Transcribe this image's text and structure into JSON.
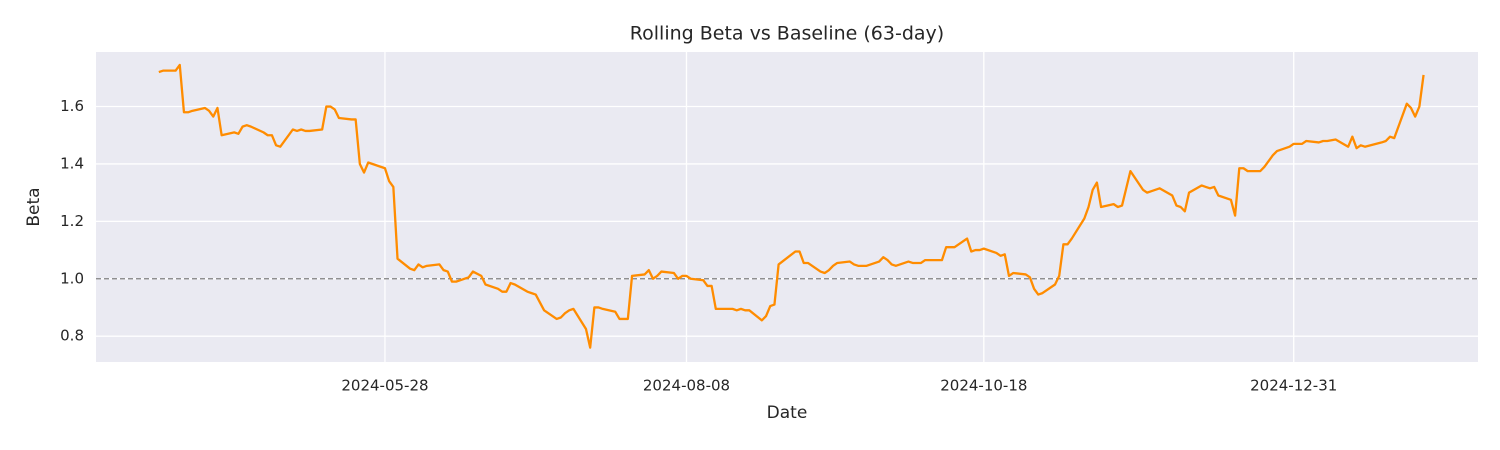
{
  "chart_data": {
    "type": "line",
    "title": "Rolling Beta vs Baseline (63-day)",
    "xlabel": "Date",
    "ylabel": "Beta",
    "color": "#ff8c00",
    "grid": true,
    "background": "#eaeaf2",
    "reference_line": {
      "value": 1,
      "color": "#808080",
      "style": "dashed"
    },
    "xlim": [
      "2024-03-20",
      "2025-02-13"
    ],
    "xticks": [
      "2024-05-28",
      "2024-08-08",
      "2024-10-18",
      "2024-12-31"
    ],
    "ylim": [
      0.71,
      1.79
    ],
    "yticks": [
      0.8,
      {
        "value": 1,
        "label": "1.0"
      },
      1.2,
      1.4,
      1.6
    ],
    "x": [
      "2024-04-04",
      "2024-04-05",
      "2024-04-08",
      "2024-04-09",
      "2024-04-10",
      "2024-04-11",
      "2024-04-12",
      "2024-04-15",
      "2024-04-16",
      "2024-04-17",
      "2024-04-18",
      "2024-04-19",
      "2024-04-22",
      "2024-04-23",
      "2024-04-24",
      "2024-04-25",
      "2024-04-26",
      "2024-04-29",
      "2024-04-30",
      "2024-05-01",
      "2024-05-02",
      "2024-05-03",
      "2024-05-06",
      "2024-05-07",
      "2024-05-08",
      "2024-05-09",
      "2024-05-10",
      "2024-05-13",
      "2024-05-14",
      "2024-05-15",
      "2024-05-16",
      "2024-05-17",
      "2024-05-20",
      "2024-05-21",
      "2024-05-22",
      "2024-05-23",
      "2024-05-24",
      "2024-05-28",
      "2024-05-29",
      "2024-05-30",
      "2024-05-31",
      "2024-06-03",
      "2024-06-04",
      "2024-06-05",
      "2024-06-06",
      "2024-06-07",
      "2024-06-10",
      "2024-06-11",
      "2024-06-12",
      "2024-06-13",
      "2024-06-14",
      "2024-06-17",
      "2024-06-18",
      "2024-06-20",
      "2024-06-21",
      "2024-06-24",
      "2024-06-25",
      "2024-06-26",
      "2024-06-27",
      "2024-06-28",
      "2024-07-01",
      "2024-07-02",
      "2024-07-03",
      "2024-07-05",
      "2024-07-08",
      "2024-07-09",
      "2024-07-10",
      "2024-07-11",
      "2024-07-12",
      "2024-07-15",
      "2024-07-16",
      "2024-07-17",
      "2024-07-18",
      "2024-07-19",
      "2024-07-22",
      "2024-07-23",
      "2024-07-24",
      "2024-07-25",
      "2024-07-26",
      "2024-07-29",
      "2024-07-30",
      "2024-07-31",
      "2024-08-01",
      "2024-08-02",
      "2024-08-05",
      "2024-08-06",
      "2024-08-07",
      "2024-08-08",
      "2024-08-09",
      "2024-08-12",
      "2024-08-13",
      "2024-08-14",
      "2024-08-15",
      "2024-08-16",
      "2024-08-19",
      "2024-08-20",
      "2024-08-21",
      "2024-08-22",
      "2024-08-23",
      "2024-08-26",
      "2024-08-27",
      "2024-08-28",
      "2024-08-29",
      "2024-08-30",
      "2024-09-03",
      "2024-09-04",
      "2024-09-05",
      "2024-09-06",
      "2024-09-09",
      "2024-09-10",
      "2024-09-11",
      "2024-09-12",
      "2024-09-13",
      "2024-09-16",
      "2024-09-17",
      "2024-09-18",
      "2024-09-19",
      "2024-09-20",
      "2024-09-23",
      "2024-09-24",
      "2024-09-25",
      "2024-09-26",
      "2024-09-27",
      "2024-09-30",
      "2024-10-01",
      "2024-10-02",
      "2024-10-03",
      "2024-10-04",
      "2024-10-07",
      "2024-10-08",
      "2024-10-09",
      "2024-10-10",
      "2024-10-11",
      "2024-10-14",
      "2024-10-15",
      "2024-10-16",
      "2024-10-17",
      "2024-10-18",
      "2024-10-21",
      "2024-10-22",
      "2024-10-23",
      "2024-10-24",
      "2024-10-25",
      "2024-10-28",
      "2024-10-29",
      "2024-10-30",
      "2024-10-31",
      "2024-11-01",
      "2024-11-04",
      "2024-11-05",
      "2024-11-06",
      "2024-11-07",
      "2024-11-08",
      "2024-11-11",
      "2024-11-12",
      "2024-11-13",
      "2024-11-14",
      "2024-11-15",
      "2024-11-18",
      "2024-11-19",
      "2024-11-20",
      "2024-11-21",
      "2024-11-22",
      "2024-11-25",
      "2024-11-26",
      "2024-11-27",
      "2024-11-29",
      "2024-12-02",
      "2024-12-03",
      "2024-12-04",
      "2024-12-05",
      "2024-12-06",
      "2024-12-09",
      "2024-12-10",
      "2024-12-11",
      "2024-12-12",
      "2024-12-13",
      "2024-12-16",
      "2024-12-17",
      "2024-12-18",
      "2024-12-19",
      "2024-12-20",
      "2024-12-23",
      "2024-12-24",
      "2024-12-26",
      "2024-12-27",
      "2024-12-30",
      "2024-12-31",
      "2025-01-02",
      "2025-01-03",
      "2025-01-06",
      "2025-01-07",
      "2025-01-08",
      "2025-01-10",
      "2025-01-13",
      "2025-01-14",
      "2025-01-15",
      "2025-01-16",
      "2025-01-17",
      "2025-01-21",
      "2025-01-22",
      "2025-01-23",
      "2025-01-24",
      "2025-01-27",
      "2025-01-28",
      "2025-01-29",
      "2025-01-30",
      "2025-01-31"
    ],
    "values": [
      1.72,
      1.725,
      1.725,
      1.745,
      1.58,
      1.58,
      1.585,
      1.595,
      1.585,
      1.565,
      1.595,
      1.5,
      1.51,
      1.505,
      1.53,
      1.535,
      1.53,
      1.51,
      1.5,
      1.5,
      1.465,
      1.46,
      1.52,
      1.515,
      1.52,
      1.515,
      1.515,
      1.52,
      1.6,
      1.6,
      1.59,
      1.56,
      1.555,
      1.555,
      1.4,
      1.37,
      1.405,
      1.385,
      1.34,
      1.32,
      1.07,
      1.035,
      1.03,
      1.05,
      1.04,
      1.045,
      1.05,
      1.03,
      1.025,
      0.99,
      0.99,
      1.005,
      1.025,
      1.01,
      0.98,
      0.965,
      0.955,
      0.955,
      0.985,
      0.98,
      0.955,
      0.95,
      0.945,
      0.89,
      0.86,
      0.865,
      0.88,
      0.89,
      0.895,
      0.825,
      0.76,
      0.9,
      0.9,
      0.895,
      0.885,
      0.86,
      0.86,
      0.86,
      1.01,
      1.015,
      1.03,
      1.0,
      1.01,
      1.025,
      1.02,
      1.0,
      1.01,
      1.01,
      1.0,
      0.995,
      0.975,
      0.975,
      0.895,
      0.895,
      0.895,
      0.89,
      0.895,
      0.89,
      0.89,
      0.855,
      0.87,
      0.905,
      0.91,
      1.05,
      1.095,
      1.095,
      1.055,
      1.055,
      1.025,
      1.02,
      1.03,
      1.045,
      1.055,
      1.06,
      1.05,
      1.045,
      1.045,
      1.045,
      1.06,
      1.075,
      1.065,
      1.05,
      1.045,
      1.06,
      1.055,
      1.055,
      1.055,
      1.065,
      1.065,
      1.065,
      1.11,
      1.11,
      1.11,
      1.14,
      1.095,
      1.1,
      1.1,
      1.105,
      1.09,
      1.08,
      1.085,
      1.01,
      1.02,
      1.015,
      1.005,
      0.965,
      0.945,
      0.95,
      0.98,
      1.01,
      1.12,
      1.12,
      1.14,
      1.21,
      1.25,
      1.31,
      1.335,
      1.25,
      1.26,
      1.25,
      1.255,
      1.315,
      1.375,
      1.31,
      1.3,
      1.305,
      1.315,
      1.29,
      1.255,
      1.25,
      1.235,
      1.3,
      1.325,
      1.32,
      1.315,
      1.32,
      1.29,
      1.275,
      1.22,
      1.385,
      1.385,
      1.375,
      1.375,
      1.39,
      1.43,
      1.445,
      1.46,
      1.47,
      1.47,
      1.48,
      1.475,
      1.48,
      1.48,
      1.485,
      1.46,
      1.495,
      1.455,
      1.465,
      1.46,
      1.475,
      1.48,
      1.495,
      1.49,
      1.61,
      1.595,
      1.565,
      1.6,
      1.71
    ]
  }
}
